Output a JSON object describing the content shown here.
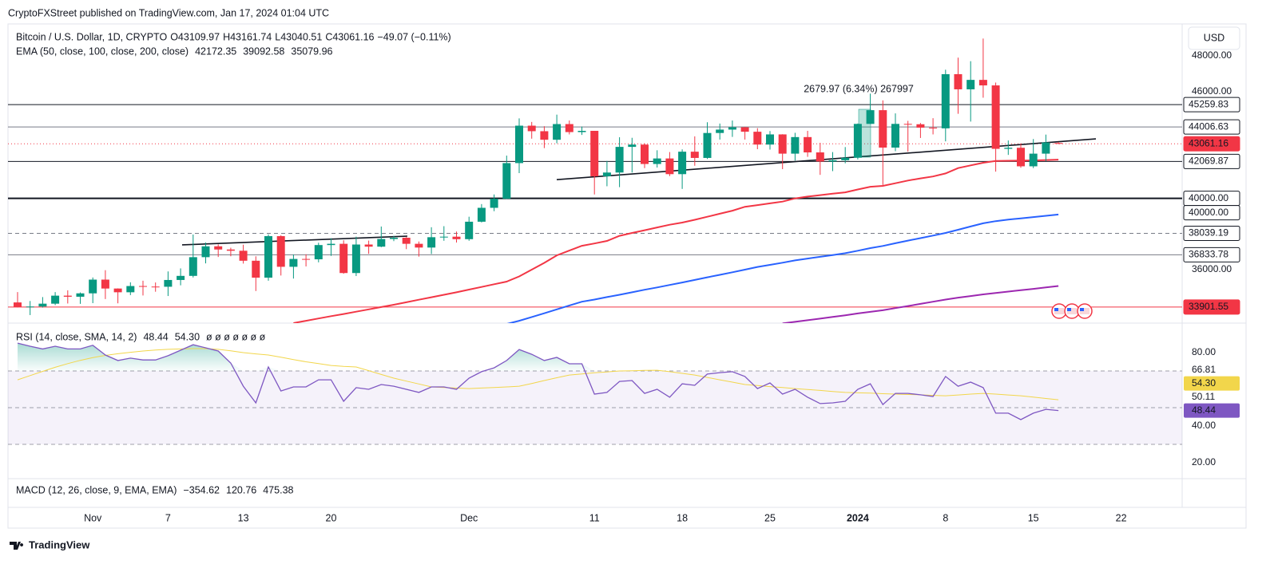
{
  "header": {
    "published": "CryptoFXStreet published on TradingView.com, Jan 17, 2024 01:04 UTC",
    "currency": "USD",
    "brand": "TradingView"
  },
  "chart_data": [
    {
      "type": "candlestick",
      "title": "Bitcoin / U.S. Dollar, 1D, CRYPTO",
      "ohlc_labels": [
        "O",
        "H",
        "L",
        "C"
      ],
      "change": "−49.07 (−0.11%)",
      "categories": [
        null,
        null,
        null,
        null,
        null,
        null,
        "Nov",
        null,
        null,
        null,
        null,
        null,
        "7",
        null,
        null,
        null,
        null,
        null,
        "13",
        null,
        null,
        null,
        null,
        null,
        null,
        "20",
        null,
        null,
        null,
        null,
        null,
        null,
        null,
        null,
        null,
        null,
        "Dec",
        null,
        null,
        null,
        null,
        null,
        null,
        null,
        null,
        null,
        "11",
        null,
        null,
        null,
        null,
        null,
        null,
        "18",
        null,
        null,
        null,
        null,
        null,
        null,
        "25",
        null,
        null,
        null,
        null,
        null,
        null,
        "2024",
        null,
        null,
        null,
        null,
        null,
        null,
        "8",
        null,
        null,
        null,
        null,
        null,
        null,
        "15",
        null,
        null,
        null,
        null,
        null,
        null,
        "22"
      ],
      "open": [
        34160,
        33910,
        33930,
        34090,
        34540,
        34480,
        34670,
        35440,
        34940,
        34730,
        35080,
        35050,
        35040,
        35420,
        35650,
        36700,
        37310,
        37130,
        37060,
        36500,
        35550,
        37880,
        36160,
        36600,
        36580,
        37380,
        37450,
        35810,
        37410,
        37290,
        37720,
        37790,
        37450,
        37240,
        37820,
        37850,
        37710,
        38690,
        39470,
        39980,
        41980,
        44080,
        43770,
        43290,
        44170,
        43720,
        43790,
        41240,
        41450,
        42890,
        43020,
        41930,
        42240,
        41360,
        42620,
        42270,
        43670,
        43860,
        43990,
        43740,
        43020,
        43590,
        42510,
        43440,
        42580,
        42070,
        42140,
        42280,
        44180,
        44950,
        42850,
        44180,
        44160,
        43970,
        43930,
        46970,
        46120,
        46650,
        46340,
        42780,
        42840,
        41800,
        42510,
        43109.97,
        null,
        null,
        null,
        null,
        null
      ],
      "high": [
        34740,
        34240,
        34460,
        34740,
        34840,
        34720,
        35560,
        35970,
        34950,
        35290,
        35380,
        35280,
        35900,
        36070,
        37970,
        37520,
        37420,
        37230,
        37400,
        36750,
        37980,
        37930,
        36850,
        36860,
        37510,
        37760,
        37650,
        37850,
        37630,
        38420,
        37890,
        37830,
        37580,
        38380,
        38440,
        38140,
        38970,
        39680,
        40220,
        42400,
        44490,
        44290,
        44050,
        44700,
        44370,
        44030,
        43790,
        42100,
        43430,
        43400,
        43090,
        42700,
        42600,
        42750,
        43480,
        44270,
        44200,
        44370,
        44010,
        43940,
        43780,
        43600,
        43680,
        43790,
        43120,
        42600,
        42880,
        44200,
        45880,
        45500,
        44770,
        44350,
        44230,
        44500,
        47220,
        47900,
        47700,
        48970,
        46500,
        43250,
        43080,
        43330,
        43580,
        43161.74,
        null,
        null,
        null,
        null,
        null
      ],
      "low": [
        33880,
        33450,
        33870,
        34010,
        34100,
        34080,
        34120,
        34350,
        34110,
        34570,
        34550,
        34760,
        34520,
        35120,
        35560,
        36350,
        36710,
        36750,
        36340,
        34800,
        35380,
        35670,
        35500,
        36180,
        36410,
        36770,
        35770,
        35640,
        36890,
        37260,
        37600,
        37150,
        36730,
        36880,
        37620,
        37520,
        37620,
        38650,
        39280,
        39970,
        41420,
        43350,
        42820,
        43090,
        43590,
        43560,
        40220,
        40680,
        40630,
        41450,
        41700,
        41730,
        41250,
        40530,
        41830,
        42210,
        43300,
        43450,
        43300,
        42760,
        42740,
        41640,
        42120,
        42330,
        41320,
        41530,
        41970,
        42190,
        44170,
        40750,
        42650,
        42620,
        43390,
        43590,
        43200,
        44750,
        44310,
        45650,
        41500,
        42440,
        41720,
        41700,
        42090,
        43040.51,
        null,
        null,
        null,
        null,
        null
      ],
      "close": [
        33910,
        33930,
        34090,
        34540,
        34480,
        34670,
        35440,
        34940,
        34730,
        35080,
        35050,
        35040,
        35420,
        35650,
        36700,
        37310,
        37130,
        37060,
        36500,
        35550,
        37880,
        36160,
        36600,
        36580,
        37380,
        37450,
        35810,
        37410,
        37290,
        37720,
        37790,
        37450,
        37240,
        37820,
        37850,
        37710,
        38690,
        39470,
        39980,
        41980,
        44080,
        43770,
        43290,
        44170,
        43720,
        43790,
        41240,
        41450,
        42890,
        43020,
        41930,
        42240,
        41360,
        42620,
        42270,
        43670,
        43860,
        43990,
        43740,
        43020,
        43590,
        42510,
        43440,
        42580,
        42070,
        42140,
        42280,
        44180,
        44950,
        42850,
        44180,
        44160,
        43970,
        43930,
        46970,
        46120,
        46650,
        46340,
        42780,
        42840,
        41800,
        42510,
        43140,
        43061.16,
        null,
        null,
        null,
        null,
        null
      ],
      "up_color": "#089981",
      "down_color": "#f23645",
      "overlay_title": "EMA (50, close, 100, close, 200, close)",
      "series": [
        {
          "color": "#f23645",
          "values": [
            null,
            null,
            null,
            null,
            null,
            null,
            null,
            null,
            null,
            null,
            null,
            null,
            null,
            null,
            null,
            null,
            null,
            null,
            null,
            null,
            null,
            null,
            33000,
            33130,
            33260,
            33390,
            33510,
            33640,
            33770,
            33900,
            34030,
            34170,
            34310,
            34450,
            34590,
            34730,
            34880,
            35030,
            35180,
            35330,
            35620,
            36000,
            36380,
            36800,
            37070,
            37340,
            37470,
            37610,
            37900,
            38060,
            38210,
            38370,
            38520,
            38640,
            38800,
            38970,
            39140,
            39310,
            39530,
            39620,
            39720,
            39820,
            40000,
            40100,
            40180,
            40260,
            40340,
            40500,
            40650,
            40700,
            40850,
            41000,
            41120,
            41230,
            41400,
            41700,
            41850,
            42000,
            42100,
            42110,
            42120,
            42130,
            42150,
            42172.35,
            null,
            null,
            null,
            null,
            null
          ]
        },
        {
          "color": "#2962ff",
          "values": [
            null,
            null,
            null,
            null,
            null,
            null,
            null,
            null,
            null,
            null,
            null,
            null,
            null,
            null,
            null,
            null,
            null,
            null,
            null,
            null,
            null,
            null,
            null,
            null,
            null,
            null,
            null,
            null,
            null,
            null,
            null,
            null,
            null,
            null,
            null,
            null,
            null,
            null,
            null,
            32950,
            33130,
            33340,
            33550,
            33770,
            33990,
            34200,
            34320,
            34460,
            34590,
            34730,
            34870,
            35000,
            35140,
            35280,
            35420,
            35570,
            35710,
            35850,
            36000,
            36150,
            36270,
            36390,
            36520,
            36620,
            36720,
            36820,
            36920,
            37060,
            37210,
            37330,
            37480,
            37630,
            37770,
            37910,
            38060,
            38240,
            38420,
            38600,
            38720,
            38810,
            38880,
            38950,
            39020,
            39092.58,
            null,
            null,
            null,
            null,
            null
          ]
        },
        {
          "color": "#9c27b0",
          "values": [
            null,
            null,
            null,
            null,
            null,
            null,
            null,
            null,
            null,
            null,
            null,
            null,
            null,
            null,
            null,
            null,
            null,
            null,
            null,
            null,
            null,
            null,
            null,
            null,
            null,
            null,
            null,
            null,
            null,
            null,
            null,
            null,
            null,
            null,
            null,
            null,
            null,
            null,
            null,
            null,
            null,
            null,
            null,
            null,
            null,
            null,
            null,
            null,
            null,
            null,
            null,
            null,
            null,
            null,
            null,
            null,
            null,
            null,
            null,
            null,
            null,
            32980,
            33070,
            33160,
            33250,
            33350,
            33440,
            33540,
            33630,
            33720,
            33840,
            33960,
            34080,
            34200,
            34320,
            34430,
            34520,
            34610,
            34690,
            34770,
            34850,
            34920,
            35000,
            35079.96,
            null,
            null,
            null,
            null,
            null
          ]
        }
      ],
      "ylim": [
        33000,
        49790
      ],
      "yticks": [
        {
          "value": 36000,
          "label": "36000.00"
        },
        {
          "value": 46000,
          "label": "46000.00"
        },
        {
          "value": 48000,
          "label": "48000.00"
        }
      ],
      "levels": [
        {
          "value": 45259.83,
          "label": "45259.83",
          "color": "#131722",
          "style": "solid",
          "filled": false
        },
        {
          "value": 44006.63,
          "label": "44006.63",
          "color": "#787b86",
          "style": "solid",
          "filled": false
        },
        {
          "value": 43061.16,
          "label": "43061.16",
          "color": "#f23645",
          "style": "dotted",
          "filled": true
        },
        {
          "value": 42069.87,
          "label": "42069.87",
          "color": "#131722",
          "style": "solid",
          "filled": false
        },
        {
          "value": 40000,
          "label": "40000.00",
          "color": "#131722",
          "style": "thick",
          "filled": false
        },
        {
          "value": 40000,
          "label": "40000.00",
          "color": "#131722",
          "style": "solid",
          "filled": false
        },
        {
          "value": 38039.19,
          "label": "38039.19",
          "color": "#787b86",
          "style": "dashed",
          "filled": false
        },
        {
          "value": 36833.78,
          "label": "36833.78",
          "color": "#787b86",
          "style": "solid",
          "filled": false
        },
        {
          "value": 33901.55,
          "label": "33901.55",
          "color": "#f23645",
          "style": "solid",
          "filled": true
        }
      ],
      "trendlines": [
        {
          "from": 37390,
          "to": 37880
        },
        {
          "from": 41050,
          "to": 43340
        }
      ],
      "measure": "2679.97 (6.34%) 267997"
    },
    {
      "type": "line",
      "title": "RSI (14, close, SMA, 14, 2)",
      "series": [
        {
          "color": "#7e57c2",
          "values": [
            85.2,
            83.5,
            82,
            83.5,
            82,
            82,
            84,
            78.7,
            75.7,
            77,
            76,
            76,
            78.3,
            81.3,
            84.3,
            82.6,
            80.9,
            74.3,
            61.7,
            52.6,
            72.2,
            59.1,
            61.3,
            61.3,
            65.2,
            65.2,
            53.5,
            60.9,
            60,
            62.6,
            61.7,
            60,
            58.3,
            61.3,
            61.3,
            60,
            66.1,
            69.6,
            71.7,
            75.7,
            81.7,
            79.1,
            75.7,
            77.4,
            73.9,
            73.9,
            57.4,
            58.3,
            64.3,
            64.8,
            57.8,
            60,
            55.7,
            63,
            62.2,
            68.3,
            69.1,
            69.6,
            67,
            60.4,
            63.5,
            57.4,
            60,
            55.7,
            52.2,
            52.6,
            53.5,
            60,
            63,
            51.7,
            57.8,
            57.8,
            57,
            56.1,
            67,
            61.7,
            63.9,
            60.9,
            47,
            47,
            43.5,
            47,
            49.1,
            48.44,
            null,
            null,
            null,
            null,
            null
          ]
        },
        {
          "color": "#f2d64b",
          "values": [
            65.2,
            67.5,
            69.8,
            72,
            74,
            75.8,
            77.3,
            78.5,
            79.4,
            80.2,
            80.9,
            81.4,
            81.8,
            82,
            82.2,
            82.2,
            81.8,
            81,
            80,
            79.3,
            78.7,
            77.5,
            76.2,
            75,
            74,
            73,
            72.5,
            72.2,
            70.2,
            68.1,
            66.1,
            64.5,
            62.9,
            61.3,
            61,
            60.7,
            60.4,
            60.7,
            61,
            61.3,
            61.7,
            63.2,
            64.8,
            66.3,
            67.8,
            68.4,
            69,
            69.5,
            70,
            70.1,
            70.3,
            70.4,
            69.6,
            68.7,
            67.8,
            66.5,
            65.2,
            63.9,
            62.6,
            62.1,
            61.5,
            61,
            60.4,
            59.9,
            59.4,
            58.8,
            58.3,
            58.1,
            57.9,
            57.6,
            57.4,
            57.2,
            57,
            56.7,
            56.5,
            56.9,
            57.4,
            57.8,
            57.4,
            56.9,
            56.5,
            55.8,
            55,
            54.3,
            null,
            null,
            null,
            null,
            null
          ]
        }
      ],
      "last_labels": [
        {
          "value": 48.44,
          "label": "48.44"
        },
        {
          "value": 54.3,
          "label": "54.30"
        }
      ],
      "empty_values": "ø ø ø ø ø ø ø",
      "ylim": [
        11.3,
        96.1
      ],
      "yticks": [
        {
          "value": 80,
          "label": "80.00"
        },
        {
          "value": 40,
          "label": "40.00"
        },
        {
          "value": 20,
          "label": "20.00"
        }
      ],
      "extra_labels": [
        {
          "value": 66.81,
          "label": "66.81"
        },
        {
          "value": 50.11,
          "label": "50.11"
        }
      ],
      "bands": [
        70,
        50,
        30
      ],
      "band_color": "#7e57c2"
    },
    {
      "type": "legend",
      "title": "MACD (12, 26, close, 9, EMA, EMA)",
      "values": [
        {
          "value": -354.62,
          "label": "−354.62",
          "color": "#f7a9b1"
        },
        {
          "value": 120.76,
          "label": "120.76",
          "color": "#2962ff"
        },
        {
          "value": 475.38,
          "label": "475.38",
          "color": "#ff6d00"
        }
      ]
    }
  ]
}
